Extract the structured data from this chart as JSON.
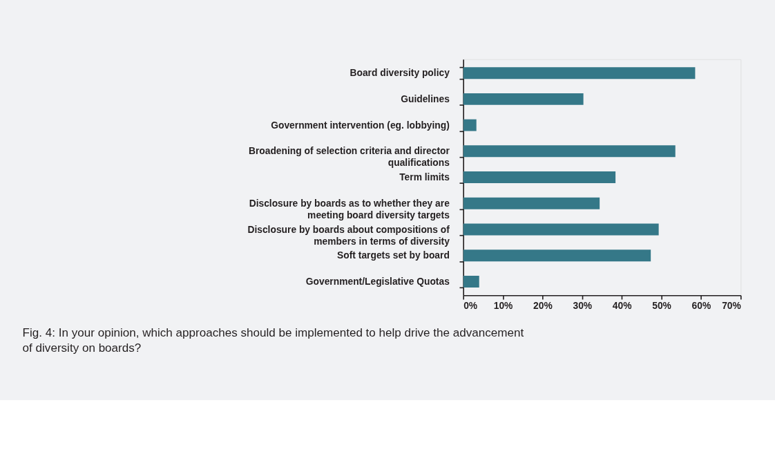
{
  "chart_data": {
    "type": "bar",
    "orientation": "horizontal",
    "categories": [
      "Board diversity policy",
      "Guidelines",
      "Government intervention (eg. lobbying)",
      "Broadening of selection criteria and director qualifications",
      "Term limits",
      "Disclosure by boards as to whether they are meeting board diversity targets",
      "Disclosure by boards about compositions of members in terms of diversity",
      "Soft targets set by board",
      "Government/Legislative Quotas"
    ],
    "values": [
      58.5,
      30.3,
      3.3,
      53.5,
      38.4,
      34.4,
      49.3,
      47.3,
      4.0
    ],
    "color": "#357888",
    "xlim": [
      0,
      70
    ],
    "xticks": [
      {
        "value": 0,
        "label": "0%"
      },
      {
        "value": 10,
        "label": "10%"
      },
      {
        "value": 20,
        "label": "20%"
      },
      {
        "value": 30,
        "label": "30%"
      },
      {
        "value": 40,
        "label": "40%"
      },
      {
        "value": 50,
        "label": "50%"
      },
      {
        "value": 60,
        "label": "60%"
      },
      {
        "value": 70,
        "label": "70%"
      }
    ],
    "grid": false,
    "annotations": [
      "Fig. 4: In your opinion, which approaches should be implemented to help drive the advancement of diversity on boards?"
    ]
  }
}
